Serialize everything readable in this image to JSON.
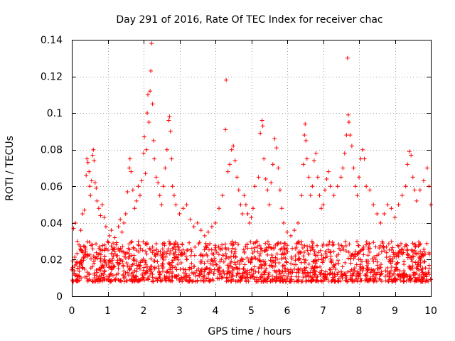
{
  "chart_data": {
    "type": "scatter",
    "title": "Day 291 of 2016, Rate Of TEC Index for receiver chac",
    "xlabel": "GPS time / hours",
    "ylabel": "ROTI / TECUs",
    "xlim": [
      0,
      10
    ],
    "ylim": [
      0,
      0.14
    ],
    "x_ticks": [
      0,
      1,
      2,
      3,
      4,
      5,
      6,
      7,
      8,
      9,
      10
    ],
    "x_tick_labels": [
      "0",
      "1",
      "2",
      "3",
      "4",
      "5",
      "6",
      "7",
      "8",
      "9",
      "10"
    ],
    "y_ticks": [
      0,
      0.02,
      0.04,
      0.06,
      0.08,
      0.1,
      0.12,
      0.14
    ],
    "y_tick_labels": [
      "0",
      "0.02",
      "0.04",
      "0.06",
      "0.08",
      "0.1",
      "0.12",
      "0.14"
    ],
    "grid": true,
    "marker": "plus",
    "color": "#ff0000",
    "baseline_band": [
      0.008,
      0.03
    ],
    "series": [
      {
        "name": "ROTI",
        "points": [
          [
            0.05,
            0.037
          ],
          [
            0.1,
            0.04
          ],
          [
            0.15,
            0.03
          ],
          [
            0.2,
            0.028
          ],
          [
            0.25,
            0.036
          ],
          [
            0.3,
            0.045
          ],
          [
            0.35,
            0.047
          ],
          [
            0.4,
            0.066
          ],
          [
            0.42,
            0.075
          ],
          [
            0.45,
            0.073
          ],
          [
            0.48,
            0.068
          ],
          [
            0.5,
            0.06
          ],
          [
            0.52,
            0.055
          ],
          [
            0.55,
            0.063
          ],
          [
            0.58,
            0.077
          ],
          [
            0.6,
            0.08
          ],
          [
            0.62,
            0.074
          ],
          [
            0.65,
            0.062
          ],
          [
            0.68,
            0.059
          ],
          [
            0.7,
            0.052
          ],
          [
            0.75,
            0.048
          ],
          [
            0.8,
            0.044
          ],
          [
            0.85,
            0.05
          ],
          [
            0.9,
            0.043
          ],
          [
            0.95,
            0.038
          ],
          [
            1.0,
            0.03
          ],
          [
            1.05,
            0.033
          ],
          [
            1.1,
            0.036
          ],
          [
            1.15,
            0.029
          ],
          [
            1.2,
            0.032
          ],
          [
            1.3,
            0.038
          ],
          [
            1.35,
            0.042
          ],
          [
            1.4,
            0.035
          ],
          [
            1.45,
            0.04
          ],
          [
            1.5,
            0.045
          ],
          [
            1.55,
            0.057
          ],
          [
            1.6,
            0.07
          ],
          [
            1.62,
            0.075
          ],
          [
            1.65,
            0.068
          ],
          [
            1.7,
            0.058
          ],
          [
            1.75,
            0.048
          ],
          [
            1.8,
            0.052
          ],
          [
            1.85,
            0.06
          ],
          [
            1.9,
            0.055
          ],
          [
            1.95,
            0.063
          ],
          [
            2.0,
            0.078
          ],
          [
            2.02,
            0.087
          ],
          [
            2.05,
            0.067
          ],
          [
            2.08,
            0.08
          ],
          [
            2.1,
            0.1
          ],
          [
            2.12,
            0.11
          ],
          [
            2.15,
            0.095
          ],
          [
            2.18,
            0.112
          ],
          [
            2.2,
            0.123
          ],
          [
            2.22,
            0.138
          ],
          [
            2.25,
            0.105
          ],
          [
            2.28,
            0.085
          ],
          [
            2.3,
            0.075
          ],
          [
            2.35,
            0.065
          ],
          [
            2.4,
            0.062
          ],
          [
            2.45,
            0.055
          ],
          [
            2.5,
            0.05
          ],
          [
            2.55,
            0.06
          ],
          [
            2.6,
            0.07
          ],
          [
            2.65,
            0.08
          ],
          [
            2.7,
            0.096
          ],
          [
            2.72,
            0.098
          ],
          [
            2.75,
            0.09
          ],
          [
            2.78,
            0.075
          ],
          [
            2.8,
            0.06
          ],
          [
            2.85,
            0.055
          ],
          [
            2.9,
            0.05
          ],
          [
            3.0,
            0.045
          ],
          [
            3.1,
            0.048
          ],
          [
            3.2,
            0.05
          ],
          [
            3.3,
            0.042
          ],
          [
            3.4,
            0.038
          ],
          [
            3.5,
            0.04
          ],
          [
            3.6,
            0.036
          ],
          [
            3.7,
            0.033
          ],
          [
            3.8,
            0.035
          ],
          [
            3.9,
            0.038
          ],
          [
            4.0,
            0.04
          ],
          [
            4.1,
            0.048
          ],
          [
            4.2,
            0.055
          ],
          [
            4.28,
            0.091
          ],
          [
            4.3,
            0.118
          ],
          [
            4.35,
            0.068
          ],
          [
            4.4,
            0.072
          ],
          [
            4.45,
            0.08
          ],
          [
            4.5,
            0.082
          ],
          [
            4.55,
            0.074
          ],
          [
            4.6,
            0.065
          ],
          [
            4.65,
            0.058
          ],
          [
            4.7,
            0.05
          ],
          [
            4.75,
            0.045
          ],
          [
            4.8,
            0.055
          ],
          [
            4.85,
            0.05
          ],
          [
            4.9,
            0.045
          ],
          [
            4.95,
            0.04
          ],
          [
            5.0,
            0.043
          ],
          [
            5.05,
            0.048
          ],
          [
            5.1,
            0.06
          ],
          [
            5.2,
            0.065
          ],
          [
            5.25,
            0.089
          ],
          [
            5.3,
            0.096
          ],
          [
            5.32,
            0.093
          ],
          [
            5.35,
            0.075
          ],
          [
            5.4,
            0.064
          ],
          [
            5.45,
            0.058
          ],
          [
            5.5,
            0.05
          ],
          [
            5.55,
            0.062
          ],
          [
            5.6,
            0.072
          ],
          [
            5.65,
            0.086
          ],
          [
            5.7,
            0.081
          ],
          [
            5.75,
            0.07
          ],
          [
            5.8,
            0.058
          ],
          [
            5.85,
            0.048
          ],
          [
            5.9,
            0.04
          ],
          [
            6.0,
            0.035
          ],
          [
            6.1,
            0.033
          ],
          [
            6.2,
            0.036
          ],
          [
            6.3,
            0.04
          ],
          [
            6.4,
            0.055
          ],
          [
            6.45,
            0.072
          ],
          [
            6.48,
            0.088
          ],
          [
            6.5,
            0.094
          ],
          [
            6.52,
            0.085
          ],
          [
            6.55,
            0.075
          ],
          [
            6.6,
            0.065
          ],
          [
            6.65,
            0.055
          ],
          [
            6.7,
            0.06
          ],
          [
            6.75,
            0.074
          ],
          [
            6.8,
            0.078
          ],
          [
            6.85,
            0.065
          ],
          [
            6.9,
            0.055
          ],
          [
            6.95,
            0.048
          ],
          [
            7.0,
            0.05
          ],
          [
            7.05,
            0.058
          ],
          [
            7.1,
            0.064
          ],
          [
            7.15,
            0.068
          ],
          [
            7.2,
            0.06
          ],
          [
            7.3,
            0.055
          ],
          [
            7.4,
            0.06
          ],
          [
            7.5,
            0.065
          ],
          [
            7.55,
            0.07
          ],
          [
            7.6,
            0.078
          ],
          [
            7.65,
            0.088
          ],
          [
            7.68,
            0.13
          ],
          [
            7.7,
            0.099
          ],
          [
            7.72,
            0.095
          ],
          [
            7.75,
            0.088
          ],
          [
            7.8,
            0.082
          ],
          [
            7.85,
            0.07
          ],
          [
            7.9,
            0.06
          ],
          [
            7.95,
            0.055
          ],
          [
            8.0,
            0.065
          ],
          [
            8.05,
            0.075
          ],
          [
            8.1,
            0.08
          ],
          [
            8.15,
            0.075
          ],
          [
            8.2,
            0.06
          ],
          [
            8.3,
            0.058
          ],
          [
            8.4,
            0.05
          ],
          [
            8.5,
            0.045
          ],
          [
            8.6,
            0.04
          ],
          [
            8.7,
            0.045
          ],
          [
            8.8,
            0.05
          ],
          [
            8.9,
            0.048
          ],
          [
            9.0,
            0.043
          ],
          [
            9.1,
            0.05
          ],
          [
            9.2,
            0.055
          ],
          [
            9.3,
            0.06
          ],
          [
            9.35,
            0.072
          ],
          [
            9.4,
            0.079
          ],
          [
            9.45,
            0.077
          ],
          [
            9.5,
            0.065
          ],
          [
            9.55,
            0.058
          ],
          [
            9.6,
            0.052
          ],
          [
            9.7,
            0.058
          ],
          [
            9.8,
            0.063
          ],
          [
            9.9,
            0.07
          ],
          [
            9.95,
            0.06
          ],
          [
            10.0,
            0.05
          ]
        ]
      }
    ]
  }
}
